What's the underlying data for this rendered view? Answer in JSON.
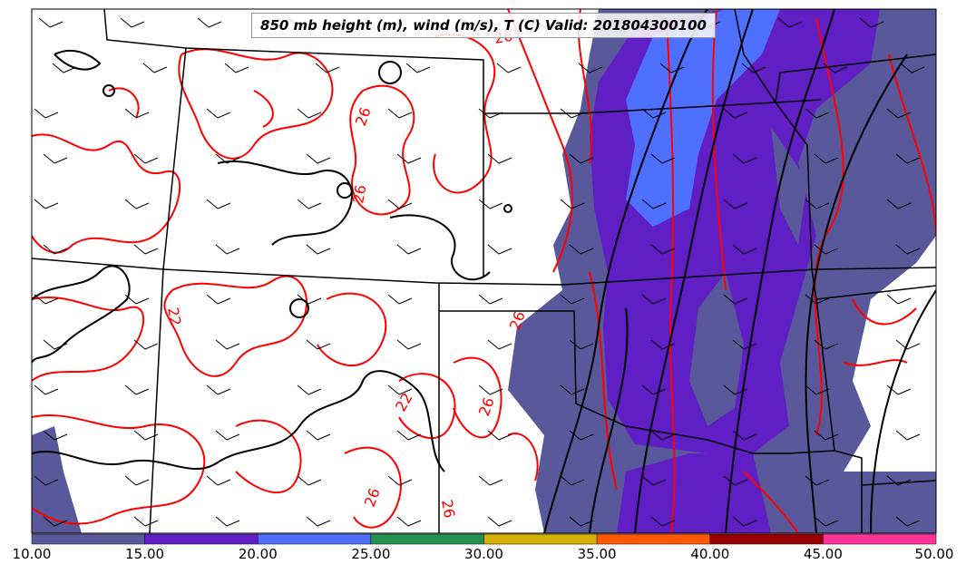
{
  "title": "850 mb height (m), wind (m/s), T (C) Valid: 201804300100",
  "colorbar": {
    "ticks": [
      "10.00",
      "15.00",
      "20.00",
      "25.00",
      "30.00",
      "35.00",
      "40.00",
      "45.00",
      "50.00"
    ],
    "colors": [
      "#58589a",
      "#5f1fc4",
      "#4f6fff",
      "#259252",
      "#d4b000",
      "#ff5800",
      "#990000",
      "#ff3399"
    ]
  },
  "contour_labels": [
    "26",
    "26",
    "26",
    "22",
    "22",
    "26",
    "26",
    "26",
    "26"
  ],
  "colors": {
    "temperature_contour": "#ff0000",
    "height_contour": "#000000",
    "state_border": "#000000",
    "wind_barb": "#000000"
  }
}
